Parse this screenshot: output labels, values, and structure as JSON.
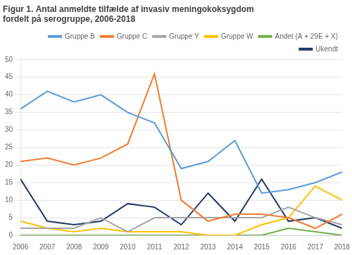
{
  "chart_data": {
    "type": "line",
    "title": "Figur 1. Antal anmeldte tilfælde af invasiv meningokoksygdom\nfordelt på serogruppe, 2006-2018",
    "x": [
      2006,
      2007,
      2008,
      2009,
      2010,
      2011,
      2012,
      2013,
      2014,
      2015,
      2016,
      2017,
      2018
    ],
    "series": [
      {
        "name": "Gruppe B",
        "color": "#5b9bd5",
        "values": [
          36,
          41,
          38,
          40,
          35,
          32,
          19,
          21,
          27,
          12,
          13,
          15,
          18
        ]
      },
      {
        "name": "Gruppe C",
        "color": "#ed7d31",
        "values": [
          21,
          22,
          20,
          22,
          26,
          46,
          10,
          4,
          6,
          6,
          5,
          2,
          6
        ]
      },
      {
        "name": "Gruppe Y",
        "color": "#a5a5a5",
        "values": [
          2,
          2,
          2,
          5,
          1,
          5,
          5,
          5,
          5,
          5,
          8,
          5,
          3
        ]
      },
      {
        "name": "Gruppe W",
        "color": "#ffc000",
        "values": [
          4,
          2,
          1,
          2,
          1,
          1,
          1,
          0,
          0,
          3,
          5,
          14,
          10
        ]
      },
      {
        "name": "Andet (A + 29E + X)",
        "color": "#70ad47",
        "values": [
          0,
          0,
          0,
          0,
          0,
          0,
          0,
          0,
          0,
          0,
          2,
          1,
          0
        ]
      },
      {
        "name": "Ukendt",
        "color": "#1f3864",
        "values": [
          16,
          4,
          3,
          4,
          9,
          8,
          3,
          12,
          4,
          16,
          4,
          5,
          2
        ]
      }
    ],
    "xlim": [
      2006,
      2018
    ],
    "xticks": [
      2006,
      2007,
      2008,
      2009,
      2010,
      2011,
      2012,
      2013,
      2014,
      2015,
      2016,
      2017,
      2018
    ],
    "ylim": [
      0,
      50
    ],
    "yticks": [
      0,
      5,
      10,
      15,
      20,
      25,
      30,
      35,
      40,
      45,
      50
    ],
    "grid": true,
    "legend": "upper right"
  }
}
